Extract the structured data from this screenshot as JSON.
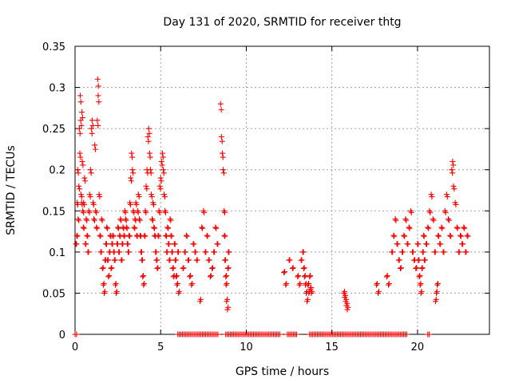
{
  "chart_data": {
    "type": "scatter",
    "title": "Day 131 of 2020, SRMTID for receiver thtg",
    "xlabel": "GPS time / hours",
    "ylabel": "SRMTID / TECUs",
    "xlim": [
      0,
      24.2
    ],
    "ylim": [
      0,
      0.35
    ],
    "x_ticks": [
      0,
      5,
      10,
      15,
      20
    ],
    "x_tick_labels": [
      "0",
      "5",
      "10",
      "15",
      "20"
    ],
    "y_ticks": [
      0,
      0.05,
      0.1,
      0.15,
      0.2,
      0.25,
      0.3,
      0.35
    ],
    "y_tick_labels": [
      "0",
      "0.05",
      "0.1",
      "0.15",
      "0.2",
      "0.25",
      "0.3",
      "0.35"
    ],
    "grid": true,
    "marker": "+",
    "color": "#ff0000",
    "series": [
      {
        "name": "SRMTID",
        "points": [
          [
            0.05,
            0.11
          ],
          [
            0.1,
            0.12
          ],
          [
            0.12,
            0.16
          ],
          [
            0.15,
            0.2
          ],
          [
            0.18,
            0.14
          ],
          [
            0.22,
            0.18
          ],
          [
            0.25,
            0.25
          ],
          [
            0.28,
            0.22
          ],
          [
            0.3,
            0.29
          ],
          [
            0.33,
            0.26
          ],
          [
            0.35,
            0.17
          ],
          [
            0.38,
            0.16
          ],
          [
            0.4,
            0.27
          ],
          [
            0.42,
            0.21
          ],
          [
            0.45,
            0.15
          ],
          [
            0.48,
            0.13
          ],
          [
            0.5,
            0.16
          ],
          [
            0.55,
            0.19
          ],
          [
            0.6,
            0.11
          ],
          [
            0.65,
            0.14
          ],
          [
            0.7,
            0.12
          ],
          [
            0.75,
            0.1
          ],
          [
            0.8,
            0.15
          ],
          [
            0.85,
            0.17
          ],
          [
            0.9,
            0.2
          ],
          [
            0.95,
            0.25
          ],
          [
            1.0,
            0.26
          ],
          [
            1.05,
            0.16
          ],
          [
            1.1,
            0.14
          ],
          [
            1.15,
            0.23
          ],
          [
            1.2,
            0.15
          ],
          [
            1.25,
            0.13
          ],
          [
            1.3,
            0.26
          ],
          [
            1.32,
            0.31
          ],
          [
            1.35,
            0.29
          ],
          [
            1.4,
            0.17
          ],
          [
            1.45,
            0.12
          ],
          [
            1.5,
            0.1
          ],
          [
            1.55,
            0.14
          ],
          [
            1.6,
            0.08
          ],
          [
            1.65,
            0.06
          ],
          [
            1.7,
            0.05
          ],
          [
            1.75,
            0.09
          ],
          [
            1.8,
            0.11
          ],
          [
            1.85,
            0.13
          ],
          [
            1.9,
            0.09
          ],
          [
            1.95,
            0.07
          ],
          [
            2.0,
            0.1
          ],
          [
            2.05,
            0.12
          ],
          [
            2.1,
            0.08
          ],
          [
            2.15,
            0.11
          ],
          [
            2.2,
            0.12
          ],
          [
            2.25,
            0.1
          ],
          [
            2.3,
            0.09
          ],
          [
            2.35,
            0.06
          ],
          [
            2.4,
            0.05
          ],
          [
            2.45,
            0.11
          ],
          [
            2.5,
            0.13
          ],
          [
            2.55,
            0.1
          ],
          [
            2.6,
            0.12
          ],
          [
            2.65,
            0.14
          ],
          [
            2.7,
            0.09
          ],
          [
            2.75,
            0.11
          ],
          [
            2.8,
            0.13
          ],
          [
            2.85,
            0.12
          ],
          [
            2.9,
            0.15
          ],
          [
            2.95,
            0.14
          ],
          [
            3.0,
            0.13
          ],
          [
            3.05,
            0.11
          ],
          [
            3.1,
            0.1
          ],
          [
            3.15,
            0.12
          ],
          [
            3.2,
            0.16
          ],
          [
            3.25,
            0.19
          ],
          [
            3.3,
            0.22
          ],
          [
            3.35,
            0.2
          ],
          [
            3.4,
            0.15
          ],
          [
            3.45,
            0.13
          ],
          [
            3.5,
            0.14
          ],
          [
            3.55,
            0.16
          ],
          [
            3.6,
            0.12
          ],
          [
            3.65,
            0.15
          ],
          [
            3.7,
            0.17
          ],
          [
            3.75,
            0.14
          ],
          [
            3.8,
            0.12
          ],
          [
            3.85,
            0.1
          ],
          [
            3.9,
            0.09
          ],
          [
            3.95,
            0.07
          ],
          [
            4.0,
            0.06
          ],
          [
            4.05,
            0.12
          ],
          [
            4.1,
            0.15
          ],
          [
            4.15,
            0.18
          ],
          [
            4.2,
            0.2
          ],
          [
            4.25,
            0.24
          ],
          [
            4.3,
            0.25
          ],
          [
            4.35,
            0.22
          ],
          [
            4.4,
            0.2
          ],
          [
            4.45,
            0.17
          ],
          [
            4.5,
            0.14
          ],
          [
            4.55,
            0.16
          ],
          [
            4.6,
            0.13
          ],
          [
            4.65,
            0.12
          ],
          [
            4.7,
            0.1
          ],
          [
            4.75,
            0.09
          ],
          [
            4.8,
            0.08
          ],
          [
            4.85,
            0.12
          ],
          [
            4.9,
            0.15
          ],
          [
            4.95,
            0.18
          ],
          [
            5.0,
            0.19
          ],
          [
            5.05,
            0.21
          ],
          [
            5.1,
            0.22
          ],
          [
            5.15,
            0.2
          ],
          [
            5.2,
            0.17
          ],
          [
            5.25,
            0.15
          ],
          [
            5.3,
            0.12
          ],
          [
            5.35,
            0.1
          ],
          [
            5.4,
            0.13
          ],
          [
            5.45,
            0.11
          ],
          [
            5.5,
            0.09
          ],
          [
            5.55,
            0.14
          ],
          [
            5.6,
            0.12
          ],
          [
            5.65,
            0.1
          ],
          [
            5.7,
            0.08
          ],
          [
            5.75,
            0.07
          ],
          [
            5.8,
            0.11
          ],
          [
            5.85,
            0.09
          ],
          [
            5.9,
            0.07
          ],
          [
            5.95,
            0.06
          ],
          [
            6.0,
            0.1
          ],
          [
            6.05,
            0.05
          ],
          [
            6.3,
            0.08
          ],
          [
            6.4,
            0.1
          ],
          [
            6.5,
            0.12
          ],
          [
            6.6,
            0.09
          ],
          [
            6.7,
            0.07
          ],
          [
            6.8,
            0.06
          ],
          [
            6.9,
            0.11
          ],
          [
            7.0,
            0.1
          ],
          [
            7.1,
            0.09
          ],
          [
            7.3,
            0.04
          ],
          [
            7.4,
            0.13
          ],
          [
            7.5,
            0.15
          ],
          [
            7.6,
            0.1
          ],
          [
            7.7,
            0.12
          ],
          [
            7.8,
            0.09
          ],
          [
            7.9,
            0.07
          ],
          [
            8.0,
            0.08
          ],
          [
            8.1,
            0.1
          ],
          [
            8.2,
            0.13
          ],
          [
            8.3,
            0.11
          ],
          [
            8.5,
            0.28
          ],
          [
            8.55,
            0.24
          ],
          [
            8.6,
            0.22
          ],
          [
            8.65,
            0.2
          ],
          [
            8.7,
            0.15
          ],
          [
            8.72,
            0.12
          ],
          [
            8.75,
            0.09
          ],
          [
            8.8,
            0.07
          ],
          [
            8.82,
            0.06
          ],
          [
            8.85,
            0.04
          ],
          [
            8.9,
            0.03
          ],
          [
            8.92,
            0.08
          ],
          [
            8.95,
            0.1
          ],
          [
            12.2,
            0.075
          ],
          [
            12.3,
            0.06
          ],
          [
            12.5,
            0.09
          ],
          [
            12.7,
            0.08
          ],
          [
            13.0,
            0.07
          ],
          [
            13.1,
            0.06
          ],
          [
            13.2,
            0.09
          ],
          [
            13.3,
            0.1
          ],
          [
            13.35,
            0.08
          ],
          [
            13.4,
            0.07
          ],
          [
            13.45,
            0.06
          ],
          [
            13.5,
            0.05
          ],
          [
            13.55,
            0.04
          ],
          [
            13.6,
            0.06
          ],
          [
            13.65,
            0.05
          ],
          [
            13.7,
            0.07
          ],
          [
            13.75,
            0.055
          ],
          [
            13.8,
            0.05
          ],
          [
            15.7,
            0.05
          ],
          [
            15.75,
            0.045
          ],
          [
            15.8,
            0.04
          ],
          [
            15.85,
            0.035
          ],
          [
            15.9,
            0.03
          ],
          [
            17.6,
            0.06
          ],
          [
            17.7,
            0.05
          ],
          [
            18.2,
            0.07
          ],
          [
            18.3,
            0.06
          ],
          [
            18.5,
            0.1
          ],
          [
            18.6,
            0.12
          ],
          [
            18.7,
            0.14
          ],
          [
            18.8,
            0.11
          ],
          [
            18.9,
            0.09
          ],
          [
            19.0,
            0.08
          ],
          [
            19.1,
            0.1
          ],
          [
            19.2,
            0.12
          ],
          [
            19.3,
            0.14
          ],
          [
            19.4,
            0.11
          ],
          [
            19.5,
            0.13
          ],
          [
            19.6,
            0.15
          ],
          [
            19.7,
            0.1
          ],
          [
            19.8,
            0.09
          ],
          [
            19.9,
            0.08
          ],
          [
            20.0,
            0.11
          ],
          [
            20.05,
            0.09
          ],
          [
            20.1,
            0.07
          ],
          [
            20.15,
            0.06
          ],
          [
            20.2,
            0.05
          ],
          [
            20.25,
            0.08
          ],
          [
            20.3,
            0.1
          ],
          [
            20.35,
            0.12
          ],
          [
            20.4,
            0.09
          ],
          [
            20.5,
            0.11
          ],
          [
            20.6,
            0.13
          ],
          [
            20.7,
            0.15
          ],
          [
            20.8,
            0.17
          ],
          [
            20.9,
            0.14
          ],
          [
            21.0,
            0.1
          ],
          [
            21.05,
            0.04
          ],
          [
            21.1,
            0.05
          ],
          [
            21.15,
            0.06
          ],
          [
            21.2,
            0.12
          ],
          [
            21.3,
            0.11
          ],
          [
            21.4,
            0.13
          ],
          [
            21.5,
            0.1
          ],
          [
            21.6,
            0.15
          ],
          [
            21.7,
            0.17
          ],
          [
            21.8,
            0.14
          ],
          [
            21.9,
            0.12
          ],
          [
            22.0,
            0.2
          ],
          [
            22.05,
            0.21
          ],
          [
            22.1,
            0.18
          ],
          [
            22.2,
            0.16
          ],
          [
            22.3,
            0.13
          ],
          [
            22.4,
            0.1
          ],
          [
            22.5,
            0.12
          ],
          [
            22.6,
            0.11
          ],
          [
            22.7,
            0.13
          ],
          [
            22.8,
            0.1
          ],
          [
            22.9,
            0.12
          ]
        ],
        "zero_segments": [
          [
            0.0,
            0.1
          ],
          [
            6.0,
            8.4
          ],
          [
            8.8,
            12.0
          ],
          [
            12.4,
            13.0
          ],
          [
            13.7,
            19.4
          ],
          [
            20.6,
            20.7
          ]
        ]
      }
    ]
  }
}
